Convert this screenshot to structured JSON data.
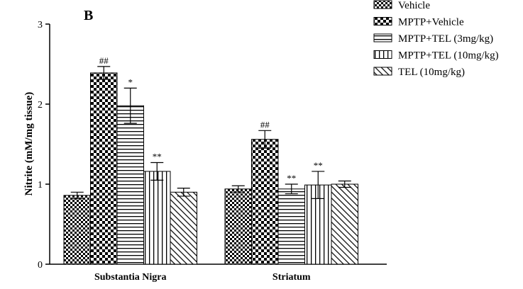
{
  "chart_data": {
    "type": "bar",
    "panel_label": "B",
    "ylabel": "Nitrite (mM/mg tissue)",
    "ylim": [
      0,
      3
    ],
    "yticks": [
      "0",
      "1",
      "2",
      "3"
    ],
    "categories": [
      "Substantia Nigra",
      "Striatum"
    ],
    "series": [
      {
        "name": "Vehicle",
        "pattern": "checker-small",
        "values": [
          0.86,
          0.94
        ],
        "errors": [
          0.04,
          0.04
        ],
        "annotations": [
          "",
          ""
        ]
      },
      {
        "name": "MPTP+Vehicle",
        "pattern": "checker-large",
        "values": [
          2.39,
          1.56
        ],
        "errors": [
          0.08,
          0.11
        ],
        "annotations": [
          "##",
          "##"
        ]
      },
      {
        "name": "MPTP+TEL (3mg/kg)",
        "pattern": "hlines",
        "values": [
          1.98,
          0.94
        ],
        "errors": [
          0.22,
          0.06
        ],
        "annotations": [
          "*",
          "**"
        ]
      },
      {
        "name": "MPTP+TEL (10mg/kg)",
        "pattern": "vlines",
        "values": [
          1.16,
          0.99
        ],
        "errors": [
          0.11,
          0.17
        ],
        "annotations": [
          "**",
          "**"
        ]
      },
      {
        "name": "TEL (10mg/kg)",
        "pattern": "diagonal",
        "values": [
          0.9,
          1.0
        ],
        "errors": [
          0.05,
          0.04
        ],
        "annotations": [
          "",
          ""
        ]
      }
    ],
    "legend_position": "top-right",
    "grid": false
  }
}
